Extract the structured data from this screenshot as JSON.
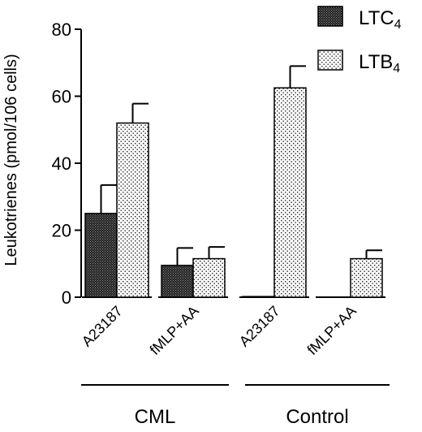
{
  "chart_data": {
    "type": "bar",
    "ylabel": "Leukotrienes  (pmol/106  cells)",
    "ylim": [
      0,
      80
    ],
    "yticks": [
      0,
      20,
      40,
      60,
      80
    ],
    "groups": [
      "CML",
      "Control"
    ],
    "categories": [
      {
        "label": "A23187",
        "group": "CML"
      },
      {
        "label": "fMLP+AA",
        "group": "CML"
      },
      {
        "label": "A23187",
        "group": "Control"
      },
      {
        "label": "fMLP+AA",
        "group": "Control"
      }
    ],
    "series": [
      {
        "name": "LTC4",
        "name_main": "LTC",
        "name_sub": "4",
        "fill": "dark-crosshatch",
        "values": [
          25,
          9.5,
          0.2,
          0
        ],
        "errors": [
          8.5,
          5.2,
          0,
          0
        ]
      },
      {
        "name": "LTB4",
        "name_main": "LTB",
        "name_sub": "4",
        "fill": "light-dotted",
        "values": [
          52,
          11.5,
          62.5,
          11.5
        ],
        "errors": [
          5.8,
          3.5,
          6.5,
          2.5
        ]
      }
    ],
    "legend_position": "top-right",
    "grid": false
  }
}
